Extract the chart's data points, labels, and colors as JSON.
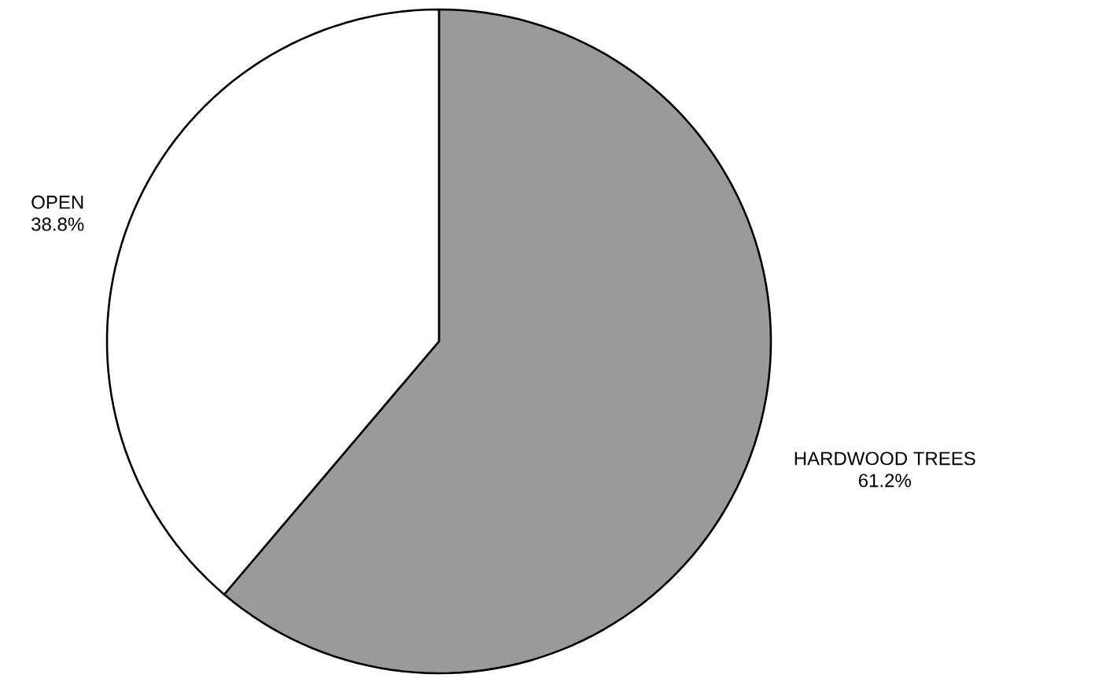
{
  "chart_data": {
    "type": "pie",
    "categories": [
      "HARDWOOD TREES",
      "OPEN"
    ],
    "values": [
      61.2,
      38.8
    ],
    "value_labels": [
      "61.2%",
      "38.8%"
    ],
    "colors": [
      "#9a9a9a",
      "#ffffff"
    ]
  }
}
